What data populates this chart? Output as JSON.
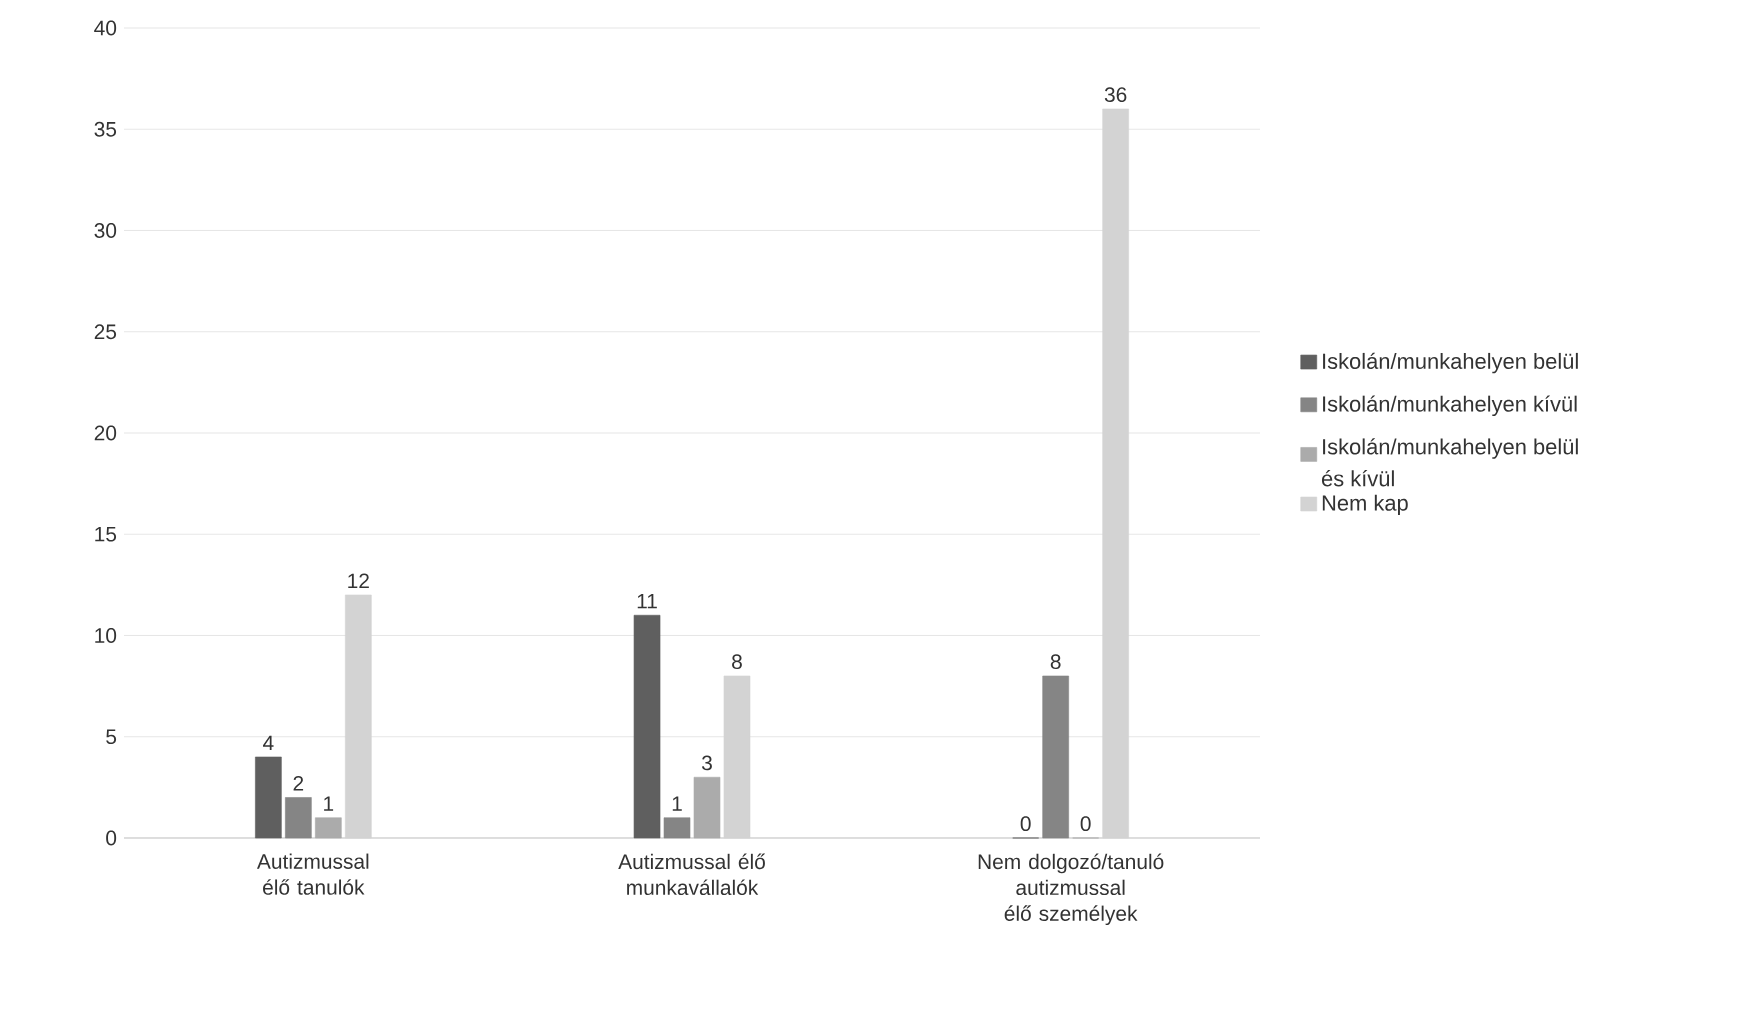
{
  "chart_data": {
    "type": "bar",
    "categories": [
      "Autizmussal élő tanulók",
      "Autizmussal élő munkavállalók",
      "Nem dolgozó/tanuló autizmussal élő személyek"
    ],
    "series": [
      {
        "name": "Iskolán/munkahelyen belül",
        "color": "#5f5f5f",
        "values": [
          4,
          11,
          0
        ]
      },
      {
        "name": "Iskolán/munkahelyen kívül",
        "color": "#858585",
        "values": [
          2,
          1,
          8
        ]
      },
      {
        "name": "Iskolán/munkahelyen belül és kívül",
        "color": "#ababab",
        "values": [
          1,
          3,
          0
        ]
      },
      {
        "name": "Nem kap",
        "color": "#d3d3d3",
        "values": [
          12,
          8,
          36
        ]
      }
    ],
    "ylim": [
      0,
      40
    ],
    "yticks": [
      0,
      5,
      10,
      15,
      20,
      25,
      30,
      35,
      40
    ],
    "grid": "y",
    "legend": "right",
    "data_labels": true
  }
}
